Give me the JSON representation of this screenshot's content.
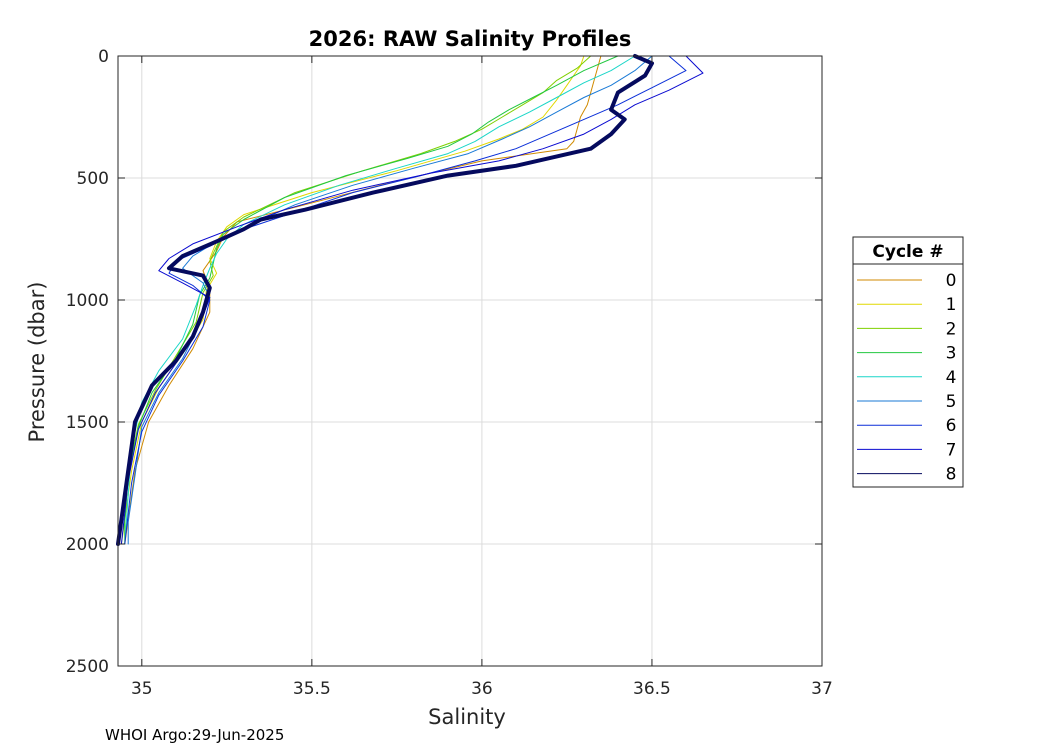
{
  "chart_data": {
    "type": "line",
    "title": "2026: RAW Salinity Profiles",
    "xlabel": "Salinity",
    "ylabel": "Pressure (dbar)",
    "xlim": [
      34.93,
      37
    ],
    "ylim": [
      0,
      2500
    ],
    "y_reversed": true,
    "grid": true,
    "x_ticks": [
      "35",
      "35.5",
      "36",
      "36.5",
      "37"
    ],
    "y_ticks": [
      "0",
      "500",
      "1000",
      "1500",
      "2000",
      "2500"
    ],
    "legend": {
      "title": "Cycle #",
      "placement": "outside-right"
    },
    "footer": "WHOI Argo:29-Jun-2025",
    "series": [
      {
        "name": "0",
        "color": "#d08a00",
        "salinity": [
          36.35,
          36.34,
          36.33,
          36.32,
          36.31,
          36.29,
          36.28,
          36.27,
          36.25,
          36.0,
          35.7,
          35.45,
          35.28,
          35.24,
          35.22,
          35.18,
          35.2,
          35.2,
          35.15,
          35.08,
          35.02,
          34.98,
          34.96,
          34.95
        ],
        "pressure": [
          0,
          50,
          100,
          150,
          200,
          250,
          300,
          350,
          380,
          430,
          530,
          620,
          680,
          740,
          800,
          880,
          950,
          1050,
          1200,
          1350,
          1500,
          1700,
          1900,
          2000
        ]
      },
      {
        "name": "1",
        "color": "#e0d800",
        "salinity": [
          36.3,
          36.29,
          36.27,
          36.25,
          36.22,
          36.18,
          36.12,
          36.05,
          35.95,
          35.75,
          35.5,
          35.3,
          35.25,
          35.22,
          35.2,
          35.22,
          35.19,
          35.18,
          35.12,
          35.05,
          35.0,
          34.97,
          34.95,
          34.95
        ],
        "pressure": [
          0,
          40,
          80,
          120,
          180,
          250,
          300,
          340,
          390,
          470,
          560,
          650,
          700,
          760,
          830,
          890,
          960,
          1080,
          1220,
          1360,
          1500,
          1700,
          1900,
          2000
        ]
      },
      {
        "name": "2",
        "color": "#7fd000",
        "salinity": [
          36.32,
          36.28,
          36.22,
          36.18,
          36.12,
          36.06,
          36.0,
          35.92,
          35.82,
          35.65,
          35.45,
          35.3,
          35.24,
          35.22,
          35.2,
          35.21,
          35.18,
          35.16,
          35.1,
          35.04,
          34.99,
          34.96,
          34.95,
          34.94
        ],
        "pressure": [
          0,
          50,
          100,
          150,
          200,
          250,
          300,
          350,
          400,
          470,
          560,
          660,
          720,
          780,
          840,
          900,
          970,
          1090,
          1230,
          1370,
          1510,
          1710,
          1900,
          2000
        ]
      },
      {
        "name": "3",
        "color": "#22c840",
        "salinity": [
          36.4,
          36.3,
          36.22,
          36.15,
          36.08,
          36.02,
          35.97,
          35.9,
          35.78,
          35.6,
          35.42,
          35.3,
          35.24,
          35.22,
          35.21,
          35.2,
          35.17,
          35.15,
          35.1,
          35.03,
          34.99,
          34.96,
          34.95,
          34.95
        ],
        "pressure": [
          0,
          60,
          120,
          170,
          220,
          270,
          320,
          370,
          420,
          490,
          580,
          670,
          730,
          790,
          850,
          910,
          980,
          1100,
          1240,
          1380,
          1520,
          1720,
          1910,
          2000
        ]
      },
      {
        "name": "4",
        "color": "#1ad6c8",
        "salinity": [
          36.45,
          36.38,
          36.3,
          36.22,
          36.14,
          36.05,
          35.98,
          35.9,
          35.75,
          35.58,
          35.42,
          35.3,
          35.25,
          35.22,
          35.2,
          35.18,
          35.16,
          35.12,
          35.05,
          35.0,
          34.97,
          34.96,
          34.95
        ],
        "pressure": [
          0,
          60,
          110,
          170,
          230,
          290,
          350,
          400,
          460,
          530,
          610,
          690,
          750,
          810,
          870,
          940,
          1020,
          1160,
          1290,
          1420,
          1600,
          1800,
          2000
        ]
      },
      {
        "name": "5",
        "color": "#1a7ad6",
        "salinity": [
          36.5,
          36.45,
          36.38,
          36.3,
          36.22,
          36.14,
          36.06,
          35.96,
          35.8,
          35.62,
          35.45,
          35.32,
          35.22,
          35.15,
          35.12,
          35.18,
          35.2,
          35.17,
          35.12,
          35.05,
          35.0,
          34.98,
          34.96,
          34.96
        ],
        "pressure": [
          0,
          60,
          120,
          170,
          230,
          290,
          340,
          400,
          460,
          530,
          610,
          690,
          760,
          820,
          870,
          930,
          990,
          1100,
          1240,
          1380,
          1520,
          1720,
          1910,
          2000
        ]
      },
      {
        "name": "6",
        "color": "#0b2fd8",
        "salinity": [
          36.55,
          36.6,
          36.5,
          36.4,
          36.3,
          36.2,
          36.1,
          35.98,
          35.82,
          35.62,
          35.45,
          35.3,
          35.2,
          35.1,
          35.08,
          35.15,
          35.2,
          35.18,
          35.12,
          35.05,
          35.0,
          34.97,
          34.95
        ],
        "pressure": [
          0,
          60,
          130,
          200,
          260,
          320,
          380,
          430,
          490,
          560,
          640,
          710,
          780,
          840,
          890,
          940,
          1000,
          1110,
          1250,
          1390,
          1540,
          1750,
          2000
        ]
      },
      {
        "name": "7",
        "color": "#0a0ad0",
        "salinity": [
          36.6,
          36.65,
          36.55,
          36.45,
          36.38,
          36.3,
          36.18,
          36.05,
          35.85,
          35.62,
          35.42,
          35.28,
          35.15,
          35.08,
          35.05,
          35.12,
          35.2,
          35.17,
          35.11,
          35.04,
          34.99,
          34.96,
          34.94
        ],
        "pressure": [
          0,
          70,
          140,
          200,
          260,
          320,
          380,
          430,
          480,
          550,
          630,
          700,
          770,
          830,
          880,
          930,
          990,
          1100,
          1240,
          1380,
          1530,
          1740,
          2000
        ]
      },
      {
        "name": "8",
        "color": "#050a5e",
        "salinity": [
          36.45,
          36.5,
          36.48,
          36.4,
          36.38,
          36.42,
          36.38,
          36.32,
          36.1,
          35.9,
          35.68,
          35.48,
          35.35,
          35.3,
          35.22,
          35.12,
          35.08,
          35.18,
          35.2,
          35.18,
          35.15,
          35.1,
          35.03,
          34.98,
          34.96,
          34.94,
          34.93
        ],
        "pressure": [
          0,
          30,
          80,
          150,
          220,
          260,
          320,
          380,
          450,
          490,
          560,
          630,
          670,
          710,
          760,
          820,
          870,
          900,
          950,
          1050,
          1150,
          1250,
          1350,
          1500,
          1700,
          1900,
          2000
        ]
      }
    ]
  }
}
